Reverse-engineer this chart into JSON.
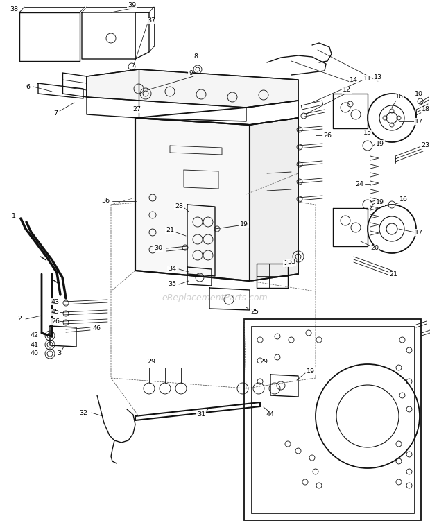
{
  "bg_color": "#ffffff",
  "line_color": "#111111",
  "text_color": "#000000",
  "watermark": "eReplacementParts.com",
  "fig_width": 6.2,
  "fig_height": 7.67,
  "dpi": 100,
  "lw_main": 1.0,
  "lw_thin": 0.6,
  "lw_leader": 0.55,
  "fs_label": 6.8
}
